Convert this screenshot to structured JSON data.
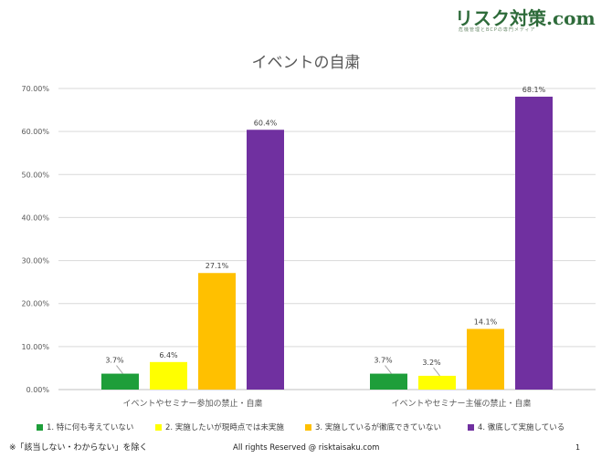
{
  "logo": {
    "main": "リスク対策.com",
    "sub": "危機管理とBCPの専門メディア"
  },
  "colors": {
    "series": [
      "#1e9e3a",
      "#ffff00",
      "#ffc000",
      "#7030a0"
    ],
    "grid": "#d9d9d9",
    "axis": "#bfbfbf",
    "text": "#595959"
  },
  "chart_data": {
    "type": "bar",
    "title": "イベントの自粛",
    "categories": [
      "イベントやセミナー参加の禁止・自粛",
      "イベントやセミナー主催の禁止・自粛"
    ],
    "series": [
      {
        "name": "1. 特に何も考えていない",
        "values": [
          3.7,
          3.7
        ],
        "labels": [
          "3.7%",
          "3.7%"
        ]
      },
      {
        "name": "2. 実施したいが現時点では未実施",
        "values": [
          6.4,
          3.2
        ],
        "labels": [
          "6.4%",
          "3.2%"
        ]
      },
      {
        "name": "3. 実施しているが徹底できていない",
        "values": [
          27.1,
          14.1
        ],
        "labels": [
          "27.1%",
          "14.1%"
        ]
      },
      {
        "name": "4. 徹底して実施している",
        "values": [
          60.4,
          68.1
        ],
        "labels": [
          "60.4%",
          "68.1%"
        ]
      }
    ],
    "ylim": [
      0,
      70
    ],
    "yticks": [
      0,
      10,
      20,
      30,
      40,
      50,
      60,
      70
    ],
    "ytick_labels": [
      "0.00%",
      "10.00%",
      "20.00%",
      "30.00%",
      "40.00%",
      "50.00%",
      "60.00%",
      "70.00%"
    ],
    "grid": true,
    "legend": "bottom"
  },
  "footer": {
    "note": "※「該当しない・わからない」を除く",
    "copyright": "All rights Reserved @ risktaisaku.com",
    "page_number": "1"
  }
}
